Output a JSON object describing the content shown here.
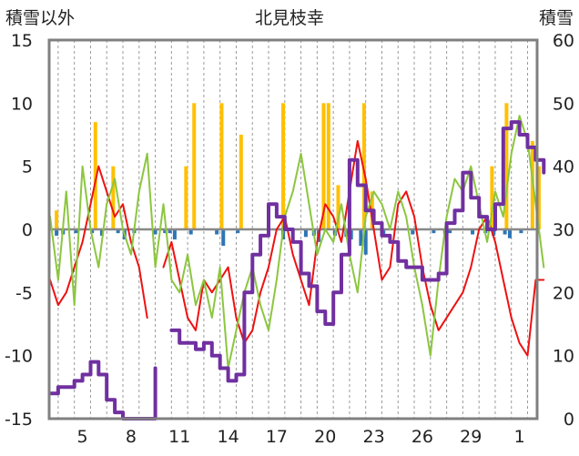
{
  "chart_data": {
    "type": "line",
    "title": "北見枝幸",
    "y_left_label": "積雪以外",
    "y_right_label": "積雪",
    "y_left_range": [
      -15,
      15
    ],
    "y_right_range": [
      0,
      60
    ],
    "y_left_ticks": [
      "15",
      "10",
      "5",
      "0",
      "-5",
      "-10",
      "-15"
    ],
    "y_right_ticks": [
      "60",
      "50",
      "40",
      "30",
      "20",
      "10",
      "0"
    ],
    "x_tick_labels": [
      "5",
      "8",
      "11",
      "14",
      "17",
      "20",
      "23",
      "26",
      "29",
      "1"
    ],
    "x_tick_days": [
      2,
      5,
      8,
      11,
      14,
      17,
      20,
      23,
      26,
      29
    ],
    "x_range": [
      0,
      30.5
    ],
    "grid": "vertical dashed daily",
    "colors": {
      "red_line": "#ee1111",
      "green_line": "#8cc63f",
      "purple_line": "#7030a0",
      "orange_bars": "#ffc000",
      "blue_bars": "#2e75b6",
      "zero_line": "#888888",
      "frame": "#808080"
    },
    "series": [
      {
        "axis": "left",
        "style": "line",
        "color": "#ee1111",
        "x": [
          0,
          0.5,
          1,
          1.5,
          2,
          2.5,
          3,
          3.5,
          4,
          4.5,
          5,
          5.5,
          6,
          6.5,
          7,
          7.5,
          8,
          8.5,
          9,
          9.5,
          10,
          10.5,
          11,
          11.5,
          12,
          12.5,
          13,
          13.5,
          14,
          14.5,
          15,
          15.5,
          16,
          16.5,
          17,
          17.5,
          18,
          18.5,
          19,
          19.5,
          20,
          20.5,
          21,
          21.5,
          22,
          22.5,
          23,
          23.5,
          24,
          24.5,
          25,
          25.5,
          26,
          26.5,
          27,
          27.5,
          28,
          28.5,
          29,
          29.5,
          30,
          30.5
        ],
        "y": [
          -4,
          -6,
          -5,
          -3,
          -1,
          2,
          5,
          3,
          1,
          2,
          -1,
          -3,
          -7,
          null,
          -3,
          -1,
          -4,
          -7,
          -8,
          -4,
          -5,
          -4,
          -3,
          -7,
          -9,
          -8,
          -5,
          -3,
          0,
          1,
          -2,
          -4,
          -6,
          -1,
          2,
          1,
          -1,
          3,
          7,
          4,
          0,
          -4,
          -3,
          2,
          3,
          1,
          -3,
          -6,
          -8,
          -7,
          -6,
          -5,
          -3,
          0,
          1,
          -1,
          -4,
          -7,
          -9,
          -10,
          -4,
          -4
        ]
      },
      {
        "axis": "left",
        "style": "line",
        "color": "#8cc63f",
        "x": [
          0,
          0.5,
          1,
          1.5,
          2,
          2.5,
          3,
          3.5,
          4,
          4.5,
          5,
          5.5,
          6,
          6.5,
          7,
          7.5,
          8,
          8.5,
          9,
          9.5,
          10,
          10.5,
          11,
          11.5,
          12,
          12.5,
          13,
          13.5,
          14,
          14.5,
          15,
          15.5,
          16,
          16.5,
          17,
          17.5,
          18,
          18.5,
          19,
          19.5,
          20,
          20.5,
          21,
          21.5,
          22,
          22.5,
          23,
          23.5,
          24,
          24.5,
          25,
          25.5,
          26,
          26.5,
          27,
          27.5,
          28,
          28.5,
          29,
          29.5,
          30,
          30.5
        ],
        "y": [
          1,
          -4,
          3,
          -6,
          5,
          0,
          -3,
          2,
          4,
          0,
          -2,
          3,
          6,
          -3,
          2,
          -4,
          -5,
          -2,
          -6,
          -4,
          -7,
          -3,
          -11,
          -8,
          -5,
          -3,
          -6,
          -8,
          -4,
          1,
          3,
          6,
          2,
          -2,
          0,
          -1,
          2,
          -2,
          -5,
          1,
          3,
          2,
          0,
          3,
          1,
          -3,
          -6,
          -10,
          -4,
          1,
          4,
          3,
          5,
          2,
          -1,
          3,
          1,
          6,
          9,
          7,
          2,
          -3
        ]
      },
      {
        "axis": "right",
        "style": "step-line",
        "color": "#7030a0",
        "x": [
          0,
          0.5,
          1,
          1.5,
          2,
          2.5,
          3,
          3.5,
          4,
          4.5,
          5,
          5.5,
          6,
          6.5,
          7,
          7.5,
          8,
          8.5,
          9,
          9.5,
          10,
          10.5,
          11,
          11.5,
          12,
          12.5,
          13,
          13.5,
          14,
          14.5,
          15,
          15.5,
          16,
          16.5,
          17,
          17.5,
          18,
          18.5,
          19,
          19.5,
          20,
          20.5,
          21,
          21.5,
          22,
          22.5,
          23,
          23.5,
          24,
          24.5,
          25,
          25.5,
          26,
          26.5,
          27,
          27.5,
          28,
          28.5,
          29,
          29.5,
          30,
          30.5
        ],
        "y": [
          4,
          5,
          5,
          6,
          7,
          9,
          7,
          3,
          1,
          0,
          0,
          0,
          0,
          8,
          null,
          14,
          12,
          12,
          11,
          12,
          10,
          8,
          6,
          7,
          20,
          26,
          29,
          34,
          32,
          30,
          28,
          23,
          21,
          17,
          15,
          20,
          26,
          41,
          37,
          33,
          31,
          29,
          28,
          25,
          24,
          24,
          22,
          22,
          23,
          31,
          33,
          39,
          35,
          32,
          30,
          34,
          46,
          47,
          45,
          43,
          41,
          39
        ]
      },
      {
        "axis": "left",
        "style": "bars-up",
        "color": "#ffc000",
        "x": [
          0.4,
          2.8,
          3.9,
          8.4,
          8.9,
          10.6,
          11.8,
          14.4,
          16.9,
          17.2,
          17.8,
          19.4,
          19.9,
          27.3,
          28.2,
          29.8,
          30.2
        ],
        "y": [
          1.5,
          8.5,
          5,
          5,
          10,
          10,
          7.5,
          10,
          10,
          10,
          3.5,
          10,
          3,
          5,
          10,
          7,
          5
        ]
      },
      {
        "axis": "left",
        "style": "bars-down",
        "color": "#2e75b6",
        "x": [
          0.4,
          0.8,
          1.6,
          2.6,
          3.2,
          4.2,
          4.6,
          5.2,
          6.5,
          7.1,
          7.4,
          7.7,
          8.7,
          10.3,
          10.7,
          11.6,
          14.4,
          15.8,
          16.3,
          16.6,
          17.6,
          18.3,
          18.6,
          19.2,
          19.5,
          20.6,
          22.4,
          23.7,
          24.4,
          24.7,
          26.1,
          26.9,
          27.4,
          28.1,
          28.4,
          29.1
        ],
        "y": [
          -0.5,
          -0.4,
          -0.3,
          -0.3,
          -0.5,
          -0.3,
          -0.8,
          -0.3,
          -0.4,
          -0.3,
          -0.3,
          -0.8,
          -0.4,
          -0.4,
          -1.3,
          -0.3,
          -0.8,
          -0.6,
          -0.5,
          -1.0,
          -0.5,
          -0.6,
          -0.8,
          -1.3,
          -2.0,
          -0.4,
          -0.4,
          -0.3,
          -0.4,
          -0.3,
          -0.4,
          -0.3,
          -0.5,
          -0.4,
          -0.7,
          -0.3
        ]
      }
    ]
  }
}
